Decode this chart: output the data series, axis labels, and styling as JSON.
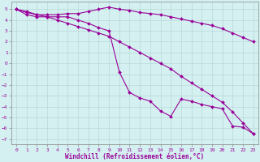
{
  "xlabel": "Windchill (Refroidissement éolien,°C)",
  "background_color": "#d4f0f0",
  "grid_color": "#b8d8d8",
  "line_color": "#990099",
  "xlim": [
    -0.5,
    23.5
  ],
  "ylim": [
    -7.5,
    5.7
  ],
  "yticks": [
    5,
    4,
    3,
    2,
    1,
    0,
    -1,
    -2,
    -3,
    -4,
    -5,
    -6,
    -7
  ],
  "xticks": [
    0,
    1,
    2,
    3,
    4,
    5,
    6,
    7,
    8,
    9,
    10,
    11,
    12,
    13,
    14,
    15,
    16,
    17,
    18,
    19,
    20,
    21,
    22,
    23
  ],
  "series1_x": [
    0,
    1,
    2,
    3,
    4,
    5,
    6,
    7,
    8,
    9,
    10,
    11,
    12,
    13,
    14,
    15,
    16,
    17,
    18,
    19,
    20,
    21,
    22,
    23
  ],
  "series1_y": [
    5.0,
    4.7,
    4.5,
    4.5,
    4.5,
    4.6,
    4.6,
    4.8,
    5.0,
    5.2,
    5.0,
    4.9,
    4.7,
    4.6,
    4.5,
    4.3,
    4.1,
    3.9,
    3.7,
    3.5,
    3.2,
    2.8,
    2.4,
    2.0
  ],
  "series2_x": [
    0,
    1,
    2,
    3,
    4,
    5,
    6,
    7,
    8,
    9,
    10,
    11,
    12,
    13,
    14,
    15,
    16,
    17,
    18,
    19,
    20,
    21,
    22,
    23
  ],
  "series2_y": [
    5.0,
    4.5,
    4.3,
    4.3,
    4.3,
    4.3,
    4.0,
    3.7,
    3.3,
    3.0,
    -0.8,
    -2.7,
    -3.2,
    -3.5,
    -4.4,
    -4.9,
    -3.3,
    -3.5,
    -3.8,
    -4.0,
    -4.2,
    -5.8,
    -5.9,
    -6.5
  ],
  "series3_x": [
    0,
    1,
    2,
    3,
    4,
    5,
    6,
    7,
    8,
    9,
    10,
    11,
    12,
    13,
    14,
    15,
    16,
    17,
    18,
    19,
    20,
    21,
    22,
    23
  ],
  "series3_y": [
    5.0,
    4.8,
    4.5,
    4.3,
    4.0,
    3.7,
    3.4,
    3.1,
    2.8,
    2.5,
    2.0,
    1.5,
    1.0,
    0.5,
    0.0,
    -0.5,
    -1.2,
    -1.8,
    -2.4,
    -3.0,
    -3.6,
    -4.5,
    -5.5,
    -6.5
  ]
}
